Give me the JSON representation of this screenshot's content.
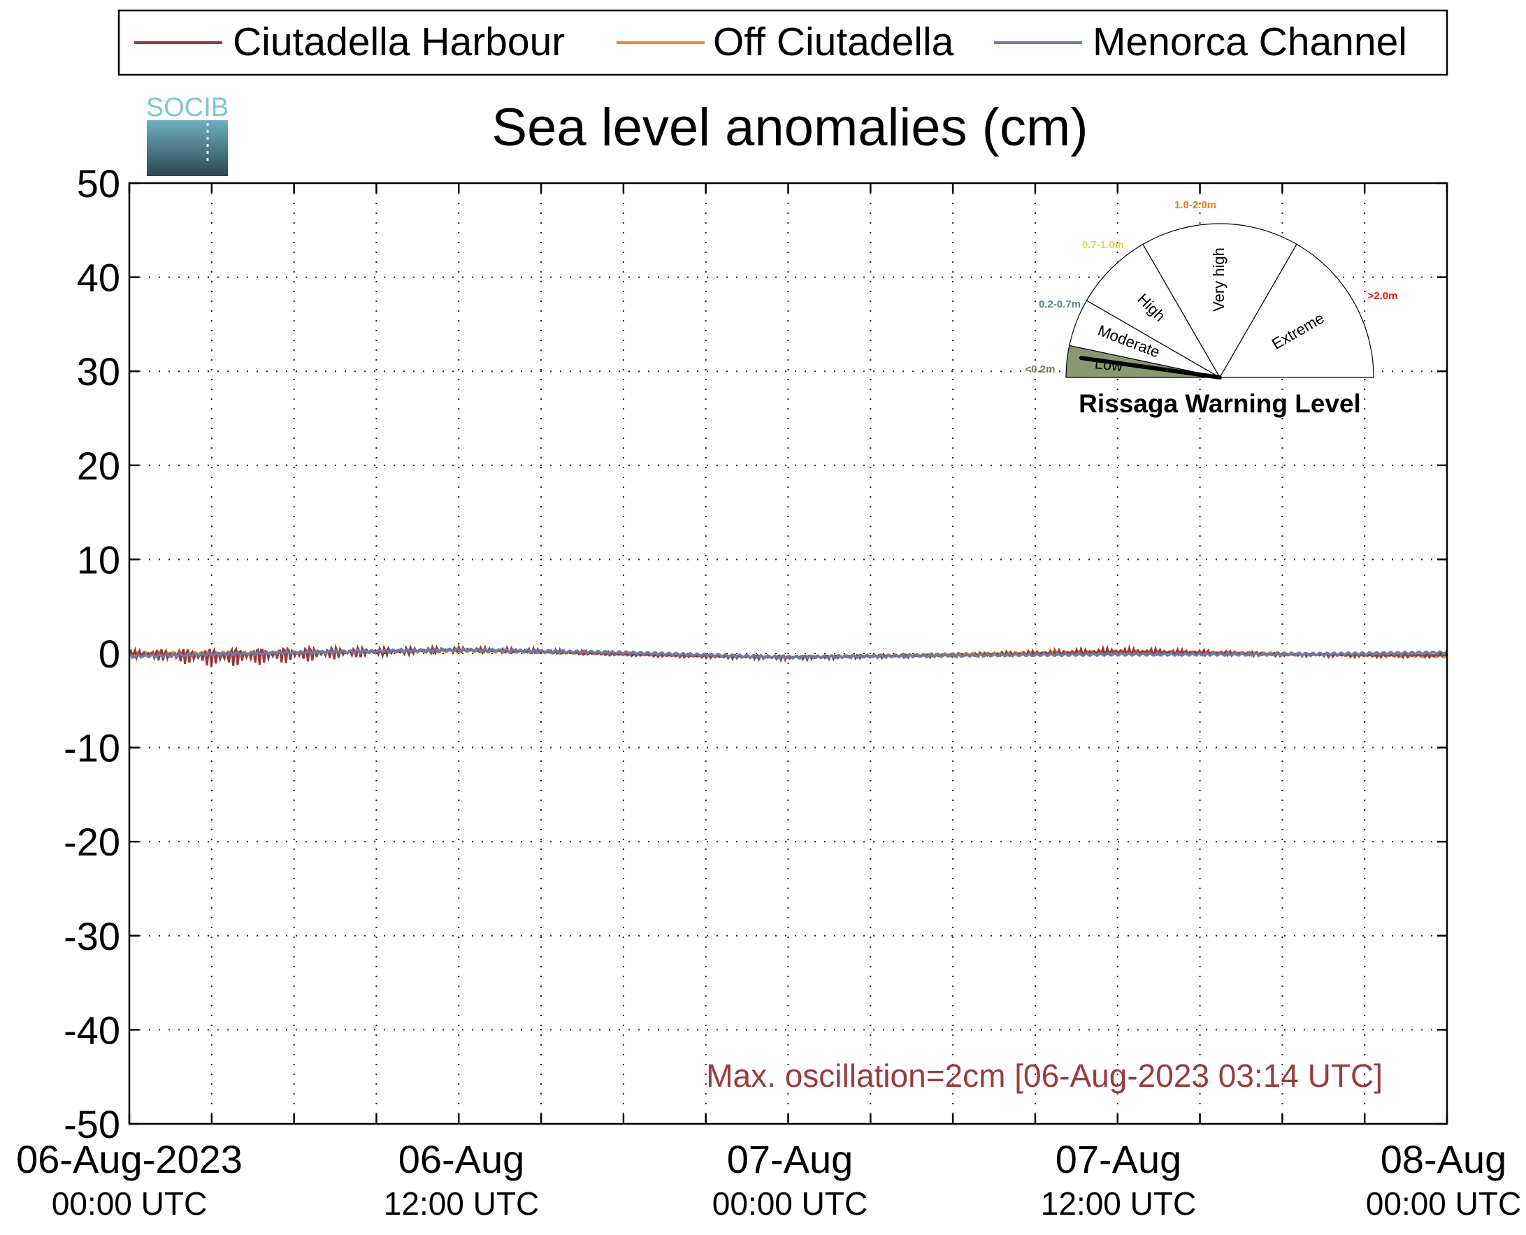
{
  "chart_data": {
    "type": "line",
    "title": "Sea level anomalies (cm)",
    "logo_text": "SOCIB",
    "ylim": [
      -50,
      50
    ],
    "yticks": [
      50,
      40,
      30,
      20,
      10,
      0,
      -10,
      -20,
      -30,
      -40,
      -50
    ],
    "xlim": [
      "2023-08-06 00:00",
      "2023-08-08 00:00"
    ],
    "x_major_ticks_hours": [
      0,
      12,
      24,
      36,
      48
    ],
    "x_minor_tick_step_hours": 3,
    "xtick_labels": [
      {
        "line1": "06-Aug-2023",
        "line2": "00:00 UTC"
      },
      {
        "line1": "06-Aug",
        "line2": "12:00 UTC"
      },
      {
        "line1": "07-Aug",
        "line2": "00:00 UTC"
      },
      {
        "line1": "07-Aug",
        "line2": "12:00 UTC"
      },
      {
        "line1": "08-Aug",
        "line2": "00:00 UTC"
      }
    ],
    "grid": true,
    "legend_placement": "top",
    "series": [
      {
        "name": "Ciutadella Harbour",
        "color": "#9a3b3b",
        "x": [
          "2023-08-06 00:00",
          "2023-08-06 03:00",
          "2023-08-06 06:00",
          "2023-08-06 09:00",
          "2023-08-06 12:00",
          "2023-08-06 15:00",
          "2023-08-06 18:00",
          "2023-08-06 21:00",
          "2023-08-07 00:00",
          "2023-08-07 03:00",
          "2023-08-07 06:00",
          "2023-08-07 09:00",
          "2023-08-07 12:00",
          "2023-08-07 15:00",
          "2023-08-07 18:00",
          "2023-08-07 21:00",
          "2023-08-08 00:00"
        ],
        "y": [
          0.0,
          -0.3,
          0.0,
          0.2,
          0.4,
          0.2,
          -0.1,
          -0.3,
          -0.4,
          -0.3,
          -0.2,
          0.0,
          0.2,
          0.1,
          -0.1,
          -0.2,
          -0.2
        ],
        "oscillation_cm": [
          0.4,
          1.2,
          1.0,
          0.5,
          0.3,
          0.3,
          0.2,
          0.2,
          0.3,
          0.2,
          0.2,
          0.3,
          0.4,
          0.3,
          0.2,
          0.2,
          0.2
        ]
      },
      {
        "name": "Off Ciutadella",
        "color": "#e5902b",
        "x": [
          "2023-08-06 00:00",
          "2023-08-06 06:00",
          "2023-08-06 12:00",
          "2023-08-06 18:00",
          "2023-08-07 00:00",
          "2023-08-07 06:00",
          "2023-08-07 12:00",
          "2023-08-07 18:00",
          "2023-08-08 00:00"
        ],
        "y": [
          0.0,
          0.1,
          0.3,
          0.0,
          -0.4,
          -0.1,
          0.2,
          0.0,
          -0.3
        ]
      },
      {
        "name": "Menorca Channel",
        "color": "#6a7ea8",
        "x": [
          "2023-08-06 00:00",
          "2023-08-06 06:00",
          "2023-08-06 12:00",
          "2023-08-06 18:00",
          "2023-08-07 00:00",
          "2023-08-07 06:00",
          "2023-08-07 12:00",
          "2023-08-07 18:00",
          "2023-08-08 00:00"
        ],
        "y": [
          -0.3,
          0.1,
          0.4,
          0.1,
          -0.4,
          -0.2,
          -0.1,
          -0.1,
          0.1
        ]
      }
    ],
    "annotation": "Max. oscillation=2cm [06-Aug-2023 03:14 UTC]",
    "annotation_color": "#9a3b3b",
    "gauge": {
      "title": "Rissaga Warning Level",
      "current_level": "Low",
      "segments": [
        {
          "label": "Low",
          "range": "<0.2m",
          "range_color": "#6f7f55",
          "fill": "#8a9970"
        },
        {
          "label": "Moderate",
          "range": "0.2-0.7m",
          "range_color": "#5a7f8f",
          "fill": "#ffffff"
        },
        {
          "label": "High",
          "range": "0.7-1.0m",
          "range_color": "#f2d32a",
          "fill": "#ffffff"
        },
        {
          "label": "Very high",
          "range": "1.0-2.0m",
          "range_color": "#f07a14",
          "fill": "#ffffff"
        },
        {
          "label": "Extreme",
          "range": ">2.0m",
          "range_color": "#e31a1a",
          "fill": "#ffffff"
        }
      ]
    }
  }
}
